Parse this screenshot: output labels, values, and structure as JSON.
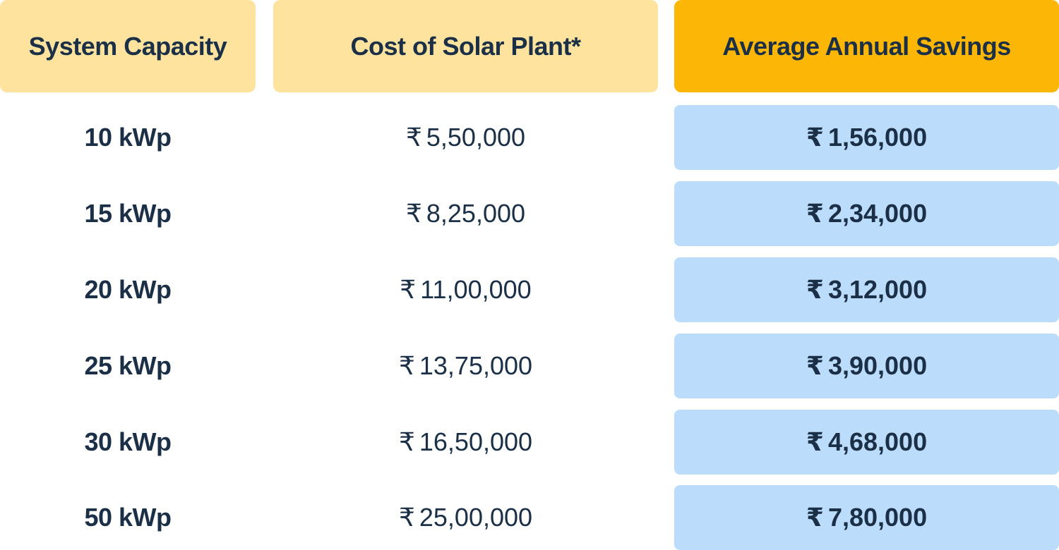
{
  "headers": {
    "capacity": "System Capacity",
    "cost": "Cost of Solar Plant*",
    "savings": "Average Annual Savings"
  },
  "currency_symbol": "₹",
  "rows": [
    {
      "capacity": "10 kWp",
      "cost": "5,50,000",
      "savings": "1,56,000"
    },
    {
      "capacity": "15 kWp",
      "cost": "8,25,000",
      "savings": "2,34,000"
    },
    {
      "capacity": "20 kWp",
      "cost": "11,00,000",
      "savings": "3,12,000"
    },
    {
      "capacity": "25 kWp",
      "cost": "13,75,000",
      "savings": "3,90,000"
    },
    {
      "capacity": "30 kWp",
      "cost": "16,50,000",
      "savings": "4,68,000"
    },
    {
      "capacity": "50 kWp",
      "cost": "25,00,000",
      "savings": "7,80,000"
    }
  ],
  "colors": {
    "header_light": "#fee39f",
    "header_accent": "#fbb606",
    "savings_cell": "#bcdcfc",
    "text": "#1b3047"
  }
}
